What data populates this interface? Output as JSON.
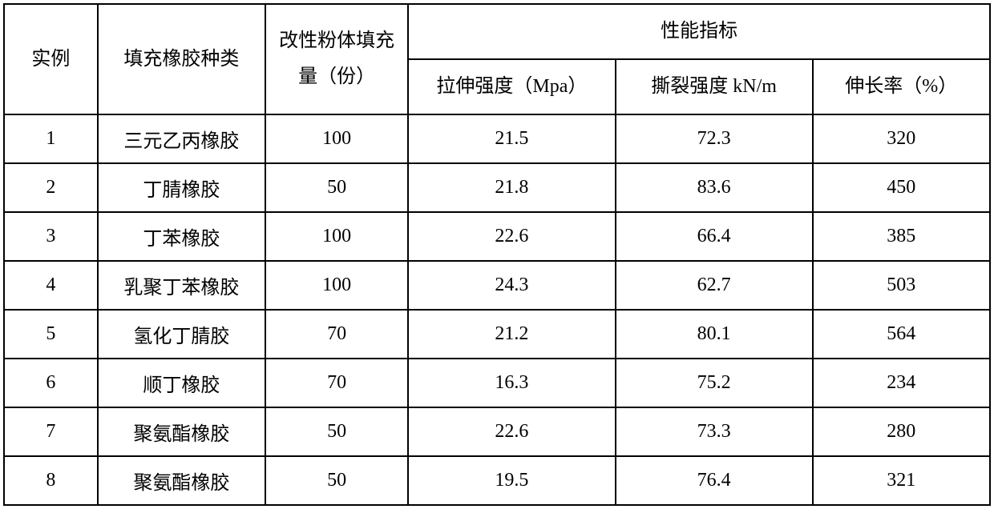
{
  "table": {
    "type": "table",
    "background_color": "#ffffff",
    "border_color": "#000000",
    "border_width": 2,
    "text_color": "#000000",
    "font_size_pt": 24,
    "font_family": "SimSun",
    "column_widths_pct": [
      9.5,
      17,
      14.5,
      21,
      20,
      18
    ],
    "cell_alignment": "center",
    "headers": {
      "col1": "实例",
      "col2": "填充橡胶种类",
      "col3": "改性粉体填充量（份）",
      "col4_group": "性能指标",
      "col4": "拉伸强度（Mpa）",
      "col5": "撕裂强度 kN/m",
      "col6": "伸长率（%）"
    },
    "rows": [
      {
        "id": "1",
        "type": "三元乙丙橡胶",
        "fill": "100",
        "tensile": "21.5",
        "tear": "72.3",
        "elongation": "320"
      },
      {
        "id": "2",
        "type": "丁腈橡胶",
        "fill": "50",
        "tensile": "21.8",
        "tear": "83.6",
        "elongation": "450"
      },
      {
        "id": "3",
        "type": "丁苯橡胶",
        "fill": "100",
        "tensile": "22.6",
        "tear": "66.4",
        "elongation": "385"
      },
      {
        "id": "4",
        "type": "乳聚丁苯橡胶",
        "fill": "100",
        "tensile": "24.3",
        "tear": "62.7",
        "elongation": "503"
      },
      {
        "id": "5",
        "type": "氢化丁腈胶",
        "fill": "70",
        "tensile": "21.2",
        "tear": "80.1",
        "elongation": "564"
      },
      {
        "id": "6",
        "type": "顺丁橡胶",
        "fill": "70",
        "tensile": "16.3",
        "tear": "75.2",
        "elongation": "234"
      },
      {
        "id": "7",
        "type": "聚氨酯橡胶",
        "fill": "50",
        "tensile": "22.6",
        "tear": "73.3",
        "elongation": "280"
      },
      {
        "id": "8",
        "type": "聚氨酯橡胶",
        "fill": "50",
        "tensile": "19.5",
        "tear": "76.4",
        "elongation": "321"
      }
    ]
  }
}
